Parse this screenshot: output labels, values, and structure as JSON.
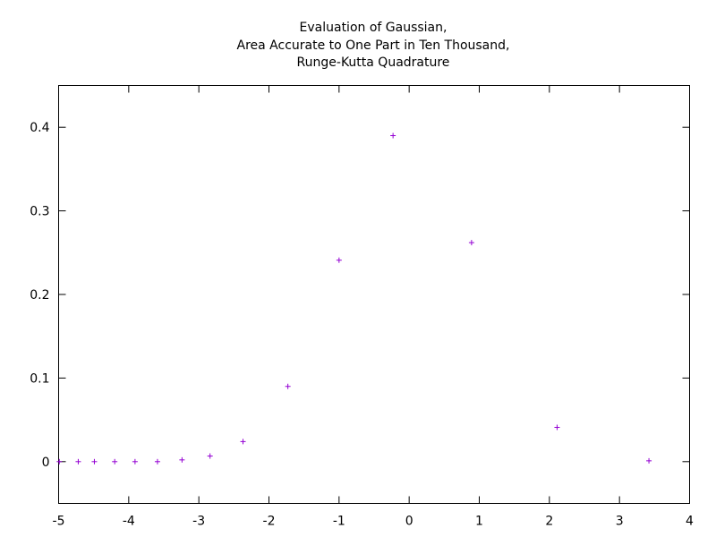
{
  "chart_data": {
    "type": "scatter",
    "title": "",
    "title_lines": [
      "Evaluation of Gaussian,",
      "Area Accurate to One Part in Ten Thousand,",
      "Runge-Kutta Quadrature"
    ],
    "xlabel": "",
    "ylabel": "",
    "xlim": [
      -5,
      4
    ],
    "ylim": [
      -0.05,
      0.45
    ],
    "x_ticks": [
      -5,
      -4,
      -3,
      -2,
      -1,
      0,
      1,
      2,
      3,
      4
    ],
    "x_tick_labels": [
      "-5",
      "-4",
      "-3",
      "-2",
      "-1",
      "0",
      "1",
      "2",
      "3",
      "4"
    ],
    "y_ticks": [
      0,
      0.1,
      0.2,
      0.3,
      0.4
    ],
    "y_tick_labels": [
      "0",
      "0.1",
      "0.2",
      "0.3",
      "0.4"
    ],
    "grid": false,
    "marker": "plus",
    "color": "#9400d3",
    "series": [
      {
        "points": [
          {
            "x": -4.99,
            "y": 0.0
          },
          {
            "x": -4.72,
            "y": 0.0
          },
          {
            "x": -4.49,
            "y": 0.0
          },
          {
            "x": -4.2,
            "y": 0.0
          },
          {
            "x": -3.91,
            "y": 0.0
          },
          {
            "x": -3.59,
            "y": 0.0
          },
          {
            "x": -3.24,
            "y": 0.0021
          },
          {
            "x": -2.84,
            "y": 0.0067
          },
          {
            "x": -2.37,
            "y": 0.024
          },
          {
            "x": -1.73,
            "y": 0.09
          },
          {
            "x": -1.0,
            "y": 0.241
          },
          {
            "x": -0.23,
            "y": 0.39
          },
          {
            "x": 0.89,
            "y": 0.262
          },
          {
            "x": 2.11,
            "y": 0.041
          },
          {
            "x": 3.42,
            "y": 0.001
          }
        ]
      }
    ]
  }
}
